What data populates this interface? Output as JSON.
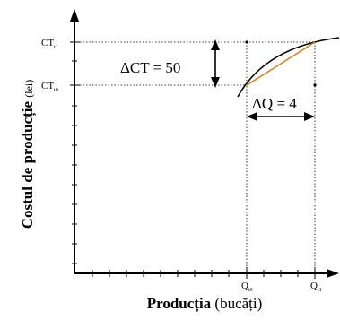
{
  "axes": {
    "y_label_bold": "Costul de producție",
    "y_label_unit": "(lei)",
    "x_label_bold": "Producția",
    "x_label_unit": "(bucăți)"
  },
  "y_ticks": {
    "ct1": {
      "main": "CT",
      "sub": "t1"
    },
    "ct0": {
      "main": "CT",
      "sub": "t0"
    }
  },
  "x_ticks": {
    "q0": {
      "main": "Q",
      "sub": "t0"
    },
    "q1": {
      "main": "Q",
      "sub": "t1"
    }
  },
  "annotations": {
    "delta_ct": "ΔCT = 50",
    "delta_q": "ΔQ = 4"
  },
  "colors": {
    "curve": "#000000",
    "secant": "#e07b1a",
    "guides": "#000000"
  }
}
